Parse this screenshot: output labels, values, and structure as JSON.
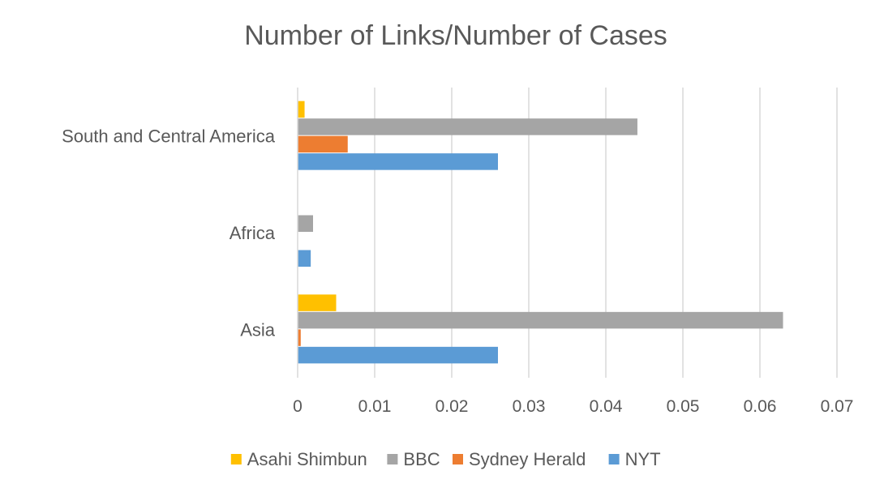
{
  "chart_data": {
    "type": "bar",
    "orientation": "horizontal",
    "title": "Number of Links/Number of Cases",
    "xlabel": "",
    "ylabel": "",
    "xlim": [
      0,
      0.07
    ],
    "x_ticks": [
      0,
      0.01,
      0.02,
      0.03,
      0.04,
      0.05,
      0.06,
      0.07
    ],
    "x_tick_labels": [
      "0",
      "0.01",
      "0.02",
      "0.03",
      "0.04",
      "0.05",
      "0.06",
      "0.07"
    ],
    "grid": true,
    "legend_position": "bottom",
    "categories": [
      "Asia",
      "Africa",
      "South and Central America"
    ],
    "series": [
      {
        "name": "Asahi Shimbun",
        "color": "#FFC000",
        "values": [
          0.005,
          0,
          0.0009
        ]
      },
      {
        "name": "BBC",
        "color": "#A5A5A5",
        "values": [
          0.063,
          0.002,
          0.0441
        ]
      },
      {
        "name": "Sydney Herald",
        "color": "#ED7D31",
        "values": [
          0.0004,
          0,
          0.0065
        ]
      },
      {
        "name": "NYT",
        "color": "#5B9BD5",
        "values": [
          0.026,
          0.0017,
          0.026
        ]
      }
    ]
  }
}
